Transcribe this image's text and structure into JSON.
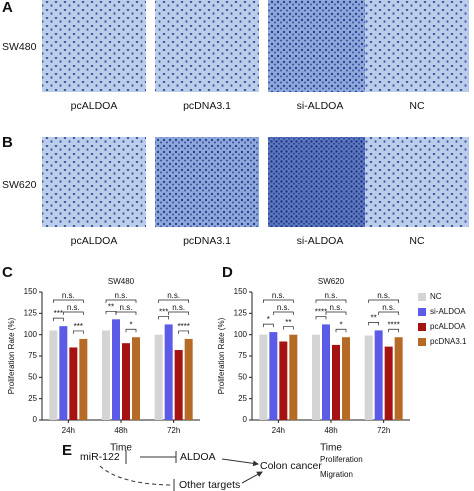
{
  "panel_a": {
    "label": "A",
    "row": "SW480",
    "images": [
      "pcALDOA",
      "pcDNA3.1",
      "si-ALDOA",
      "NC"
    ]
  },
  "panel_b": {
    "label": "B",
    "row": "SW620",
    "images": [
      "pcALDOA",
      "pcDNA3.1",
      "si-ALDOA",
      "NC"
    ]
  },
  "chart_data": [
    {
      "type": "bar",
      "label": "C",
      "title": "SW480",
      "y_label": "Proliferation Rate (%)",
      "x_label": "Time",
      "categories": [
        "24h",
        "48h",
        "72h"
      ],
      "ylim": [
        0,
        150
      ],
      "yticks": [
        0,
        25,
        50,
        75,
        100,
        125,
        150
      ],
      "series": [
        {
          "color": "#d4d4d4",
          "values": [
            105,
            105,
            100
          ]
        },
        {
          "color": "#5b5be8",
          "values": [
            110,
            118,
            112
          ]
        },
        {
          "color": "#a51212",
          "values": [
            85,
            90,
            82
          ]
        },
        {
          "color": "#b56a25",
          "values": [
            95,
            97,
            95
          ]
        }
      ],
      "significance": [
        [
          "n.s.",
          "n.s.",
          "***",
          "***"
        ],
        [
          "n.s.",
          "n.s.",
          "**",
          "*"
        ],
        [
          "n.s.",
          "n.s.",
          "***",
          "****"
        ]
      ]
    },
    {
      "type": "bar",
      "label": "D",
      "title": "SW620",
      "y_label": "Proliferation Rate (%)",
      "x_label": "Time",
      "categories": [
        "24h",
        "48h",
        "72h"
      ],
      "ylim": [
        0,
        150
      ],
      "yticks": [
        0,
        25,
        50,
        75,
        100,
        125,
        150
      ],
      "series": [
        {
          "name": "NC",
          "color": "#d4d4d4",
          "values": [
            100,
            100,
            99
          ]
        },
        {
          "name": "si-ALDOA",
          "color": "#5b5be8",
          "values": [
            103,
            112,
            105
          ]
        },
        {
          "name": "pcALDOA",
          "color": "#a51212",
          "values": [
            92,
            88,
            86
          ]
        },
        {
          "name": "pcDNA3.1",
          "color": "#b56a25",
          "values": [
            100,
            97,
            97
          ]
        }
      ],
      "significance": [
        [
          "n.s.",
          "n.s.",
          "*",
          "**"
        ],
        [
          "n.s.",
          "n.s.",
          "****",
          "*"
        ],
        [
          "n.s.",
          "n.s.",
          "**",
          "****"
        ]
      ]
    }
  ],
  "panel_e": {
    "label": "E",
    "mir": "miR-122",
    "target": "ALDOA",
    "other": "Other targets",
    "outcome": "Colon cancer",
    "effects": [
      "Proliferation",
      "Migration"
    ]
  }
}
